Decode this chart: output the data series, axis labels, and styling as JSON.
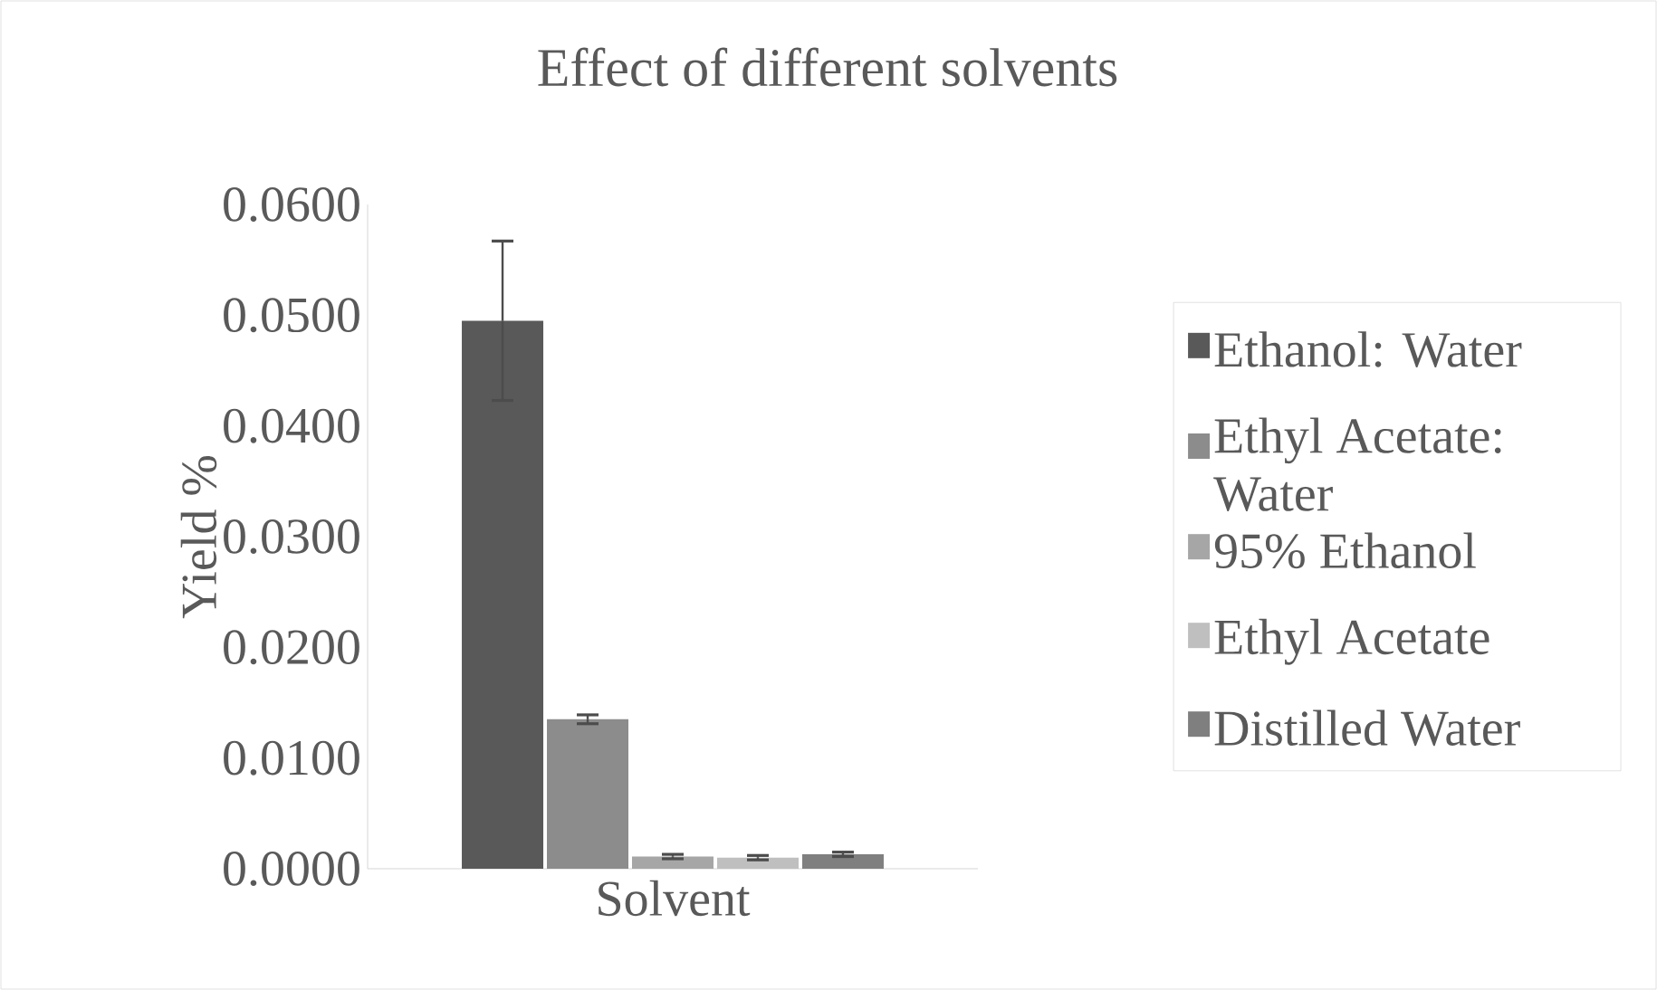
{
  "chart_data": {
    "type": "bar",
    "title": "Effect of different solvents",
    "xlabel": "Solvent",
    "ylabel": "Yield %",
    "categories": [
      null
    ],
    "series": [
      {
        "name": "Ethanol: Water",
        "color": "#595959",
        "values": [
          0.0495
        ],
        "errors": [
          0.0072
        ]
      },
      {
        "name": "Ethyl Acetate: Water",
        "color": "#8c8c8c",
        "values": [
          0.0135
        ],
        "errors": [
          0.0004
        ]
      },
      {
        "name": "95% Ethanol",
        "color": "#a6a6a6",
        "values": [
          0.0011
        ],
        "errors": [
          0.0002
        ]
      },
      {
        "name": "Ethyl Acetate",
        "color": "#bfbfbf",
        "values": [
          0.001
        ],
        "errors": [
          0.0002
        ]
      },
      {
        "name": "Distilled Water",
        "color": "#7f7f7f",
        "values": [
          0.0013
        ],
        "errors": [
          0.0002
        ]
      }
    ],
    "ylim": [
      0,
      0.06
    ],
    "yticks": [
      {
        "value": 0,
        "label": "0.0000"
      },
      {
        "value": 0.01,
        "label": "0.0100"
      },
      {
        "value": 0.02,
        "label": "0.0200"
      },
      {
        "value": 0.03,
        "label": "0.0300"
      },
      {
        "value": 0.04,
        "label": "0.0400"
      },
      {
        "value": 0.05,
        "label": "0.0500"
      },
      {
        "value": 0.06,
        "label": "0.0600"
      }
    ],
    "legend": "right",
    "grid": false
  }
}
